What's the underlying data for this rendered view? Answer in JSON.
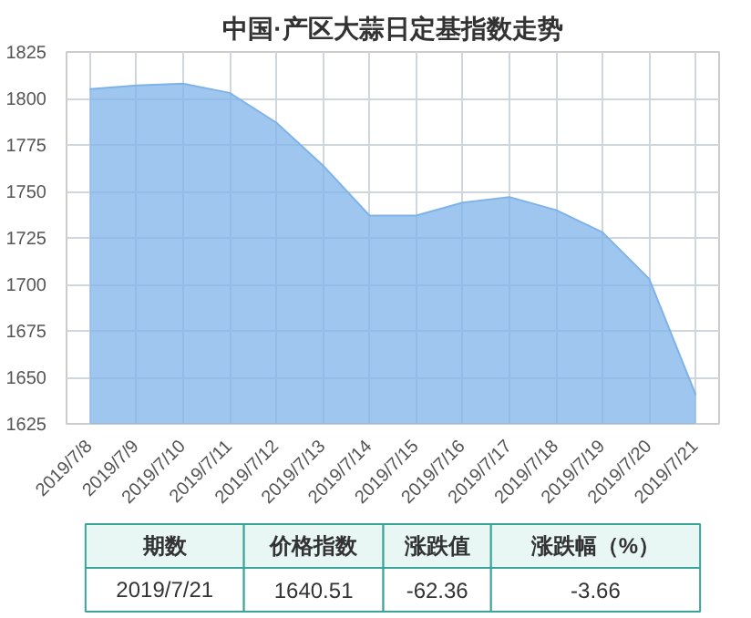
{
  "chart_data": {
    "type": "area",
    "title": "中国·产区大蒜日定基指数走势",
    "categories": [
      "2019/7/8",
      "2019/7/9",
      "2019/7/10",
      "2019/7/11",
      "2019/7/12",
      "2019/7/13",
      "2019/7/14",
      "2019/7/15",
      "2019/7/16",
      "2019/7/17",
      "2019/7/18",
      "2019/7/19",
      "2019/7/20",
      "2019/7/21"
    ],
    "series": [
      {
        "color": "#7fb3e8",
        "values": [
          1805,
          1807,
          1808,
          1803,
          1787,
          1764,
          1737,
          1737,
          1744,
          1747,
          1740,
          1728,
          1703,
          1640.51
        ]
      }
    ],
    "ylim": [
      1625,
      1825
    ],
    "yticks": [
      1625,
      1650,
      1675,
      1700,
      1725,
      1750,
      1775,
      1800,
      1825
    ],
    "grid": true,
    "marker": "none",
    "annotations": [
      "期数",
      "价格指数",
      "涨跌值",
      "涨跌幅（%）",
      "2019/7/21",
      "1640.51",
      "-62.36",
      "-3.66"
    ]
  }
}
